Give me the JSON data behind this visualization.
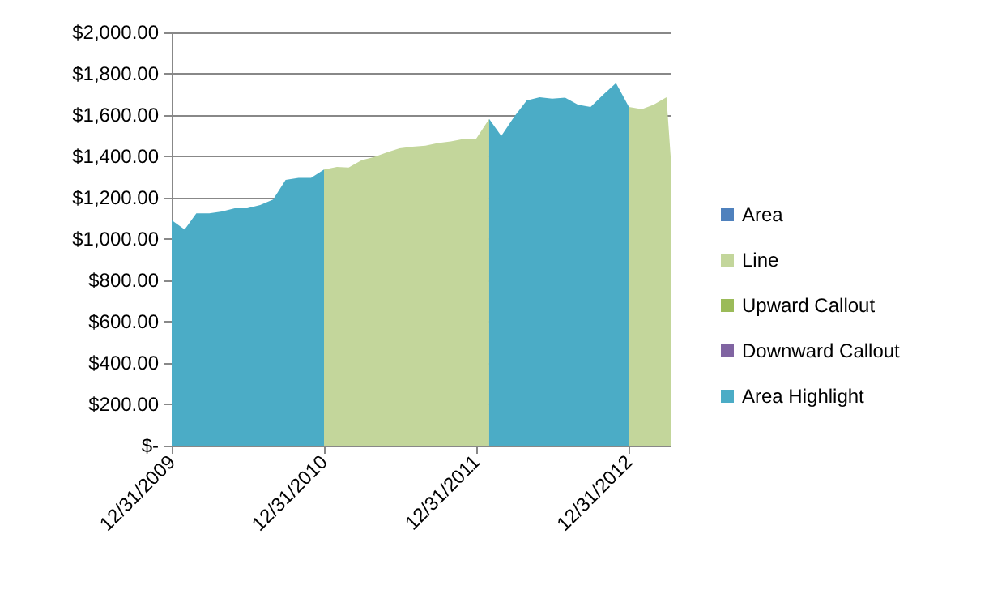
{
  "chart_data": {
    "type": "area",
    "x": [
      "2009-12-31",
      "2010-01-31",
      "2010-02-28",
      "2010-03-31",
      "2010-04-30",
      "2010-05-31",
      "2010-06-30",
      "2010-07-31",
      "2010-08-31",
      "2010-09-30",
      "2010-10-31",
      "2010-11-30",
      "2010-12-31",
      "2011-01-31",
      "2011-02-28",
      "2011-03-31",
      "2011-04-30",
      "2011-05-31",
      "2011-06-30",
      "2011-07-31",
      "2011-08-31",
      "2011-09-30",
      "2011-10-31",
      "2011-11-30",
      "2011-12-31",
      "2012-01-31",
      "2012-02-29",
      "2012-03-31",
      "2012-04-30",
      "2012-05-31",
      "2012-06-30",
      "2012-07-31",
      "2012-08-31",
      "2012-09-30",
      "2012-10-31",
      "2012-11-30",
      "2012-12-31",
      "2013-01-31",
      "2013-02-28",
      "2013-03-31",
      "2013-04-10"
    ],
    "series": [
      {
        "name": "Area",
        "color": "#4f81bd",
        "values": [
          null,
          null,
          null,
          null,
          null,
          null,
          null,
          null,
          null,
          null,
          null,
          null,
          null,
          null,
          null,
          null,
          null,
          null,
          null,
          null,
          null,
          null,
          null,
          null,
          null,
          null,
          null,
          null,
          null,
          null,
          null,
          null,
          null,
          null,
          null,
          null,
          null,
          null,
          null,
          null,
          null
        ]
      },
      {
        "name": "Line",
        "color": "#c3d69b",
        "values": [
          null,
          null,
          null,
          null,
          null,
          null,
          null,
          null,
          null,
          null,
          null,
          null,
          1336,
          1349,
          1346,
          1381,
          1397,
          1420,
          1439,
          1447,
          1452,
          1465,
          1473,
          1484,
          1486,
          1581,
          null,
          null,
          null,
          null,
          null,
          null,
          null,
          null,
          null,
          null,
          1639,
          1628,
          1650,
          1686,
          1400
        ]
      },
      {
        "name": "Upward Callout",
        "color": "#9bbb59",
        "values": [
          null,
          null,
          null,
          null,
          null,
          null,
          null,
          null,
          null,
          null,
          null,
          null,
          null,
          null,
          null,
          null,
          null,
          null,
          null,
          null,
          null,
          null,
          null,
          null,
          null,
          null,
          null,
          null,
          null,
          null,
          null,
          null,
          null,
          null,
          null,
          null,
          null,
          null,
          null,
          null,
          null
        ]
      },
      {
        "name": "Downward Callout",
        "color": "#8064a2",
        "values": [
          null,
          null,
          null,
          null,
          null,
          null,
          null,
          null,
          null,
          null,
          null,
          null,
          null,
          null,
          null,
          null,
          null,
          null,
          null,
          null,
          null,
          null,
          null,
          null,
          null,
          null,
          null,
          null,
          null,
          null,
          null,
          null,
          null,
          null,
          null,
          null,
          null,
          null,
          null,
          null,
          null
        ]
      },
      {
        "name": "Area Highlight",
        "color": "#4bacc6",
        "values": [
          1091,
          1046,
          1125,
          1125,
          1133,
          1149,
          1149,
          1165,
          1191,
          1286,
          1296,
          1296,
          1336,
          null,
          null,
          null,
          null,
          null,
          null,
          null,
          null,
          null,
          null,
          null,
          null,
          1581,
          1499,
          1592,
          1671,
          1686,
          1679,
          1684,
          1650,
          1639,
          1700,
          1755,
          1639,
          null,
          null,
          null,
          null
        ]
      }
    ],
    "xlim": [
      "2009-12-31",
      "2013-04-10"
    ],
    "xticks": [
      {
        "value": "2009-12-31",
        "label": "12/31/2009"
      },
      {
        "value": "2010-12-31",
        "label": "12/31/2010"
      },
      {
        "value": "2011-12-31",
        "label": "12/31/2011"
      },
      {
        "value": "2012-12-31",
        "label": "12/31/2012"
      }
    ],
    "ylim": [
      0,
      2000
    ],
    "yticks": [
      {
        "value": 0,
        "label": "$-"
      },
      {
        "value": 200,
        "label": "$200.00"
      },
      {
        "value": 400,
        "label": "$400.00"
      },
      {
        "value": 600,
        "label": "$600.00"
      },
      {
        "value": 800,
        "label": "$800.00"
      },
      {
        "value": 1000,
        "label": "$1,000.00"
      },
      {
        "value": 1200,
        "label": "$1,200.00"
      },
      {
        "value": 1400,
        "label": "$1,400.00"
      },
      {
        "value": 1600,
        "label": "$1,600.00"
      },
      {
        "value": 1800,
        "label": "$1,800.00"
      },
      {
        "value": 2000,
        "label": "$2,000.00"
      }
    ],
    "grid": "y",
    "legend": "right"
  }
}
